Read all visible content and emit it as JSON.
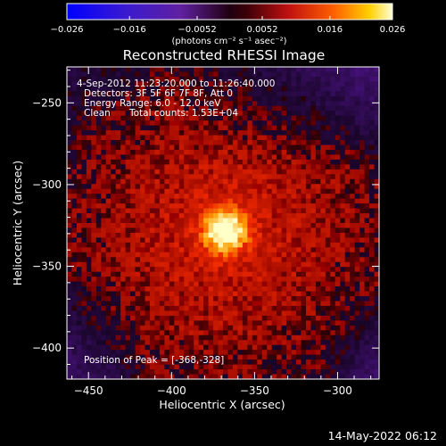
{
  "chart_data": {
    "type": "heatmap",
    "title": "Reconstructed RHESSI Image",
    "xlabel": "Heliocentric X (arcsec)",
    "ylabel": "Heliocentric Y (arcsec)",
    "xlim": [
      -463,
      -275
    ],
    "ylim": [
      -419,
      -228
    ],
    "x_ticks": [
      -450,
      -400,
      -350,
      -300
    ],
    "y_ticks": [
      -250,
      -300,
      -350,
      -400
    ],
    "x_tick_labels": [
      "−450",
      "−400",
      "−350",
      "−300"
    ],
    "y_tick_labels": [
      "−250",
      "−300",
      "−350",
      "−400"
    ],
    "colorbar": {
      "range": [
        -0.026,
        0.026
      ],
      "ticks": [
        -0.026,
        -0.016,
        -0.0052,
        0.0052,
        0.016,
        0.026
      ],
      "tick_labels": [
        "−0.026",
        "−0.016",
        "−0.0052",
        "0.0052",
        "0.016",
        "0.026"
      ],
      "unit_label": "(photons cm⁻² s⁻¹ asec⁻²)"
    },
    "peak": {
      "x": -368,
      "y": -328,
      "value": 0.026
    },
    "annotations": {
      "time_range": "4-Sep-2012 11:23:20.000 to 11:26:40.000",
      "detectors": "Detectors: 3F 5F 6F 7F 8F, Att 0",
      "energy": "Energy Range: 6.0 - 12.0 keV",
      "method": "Clean",
      "counts": "Total counts: 1.53E+04",
      "peak_position": "Position of Peak = [-368,-328]"
    }
  },
  "footer": {
    "timestamp": "14-May-2022 06:12"
  },
  "colors": {
    "background": "#000000",
    "negative": "#5a1aa0",
    "positive_low": "#b0101a",
    "positive_high": "#ffffd0"
  }
}
